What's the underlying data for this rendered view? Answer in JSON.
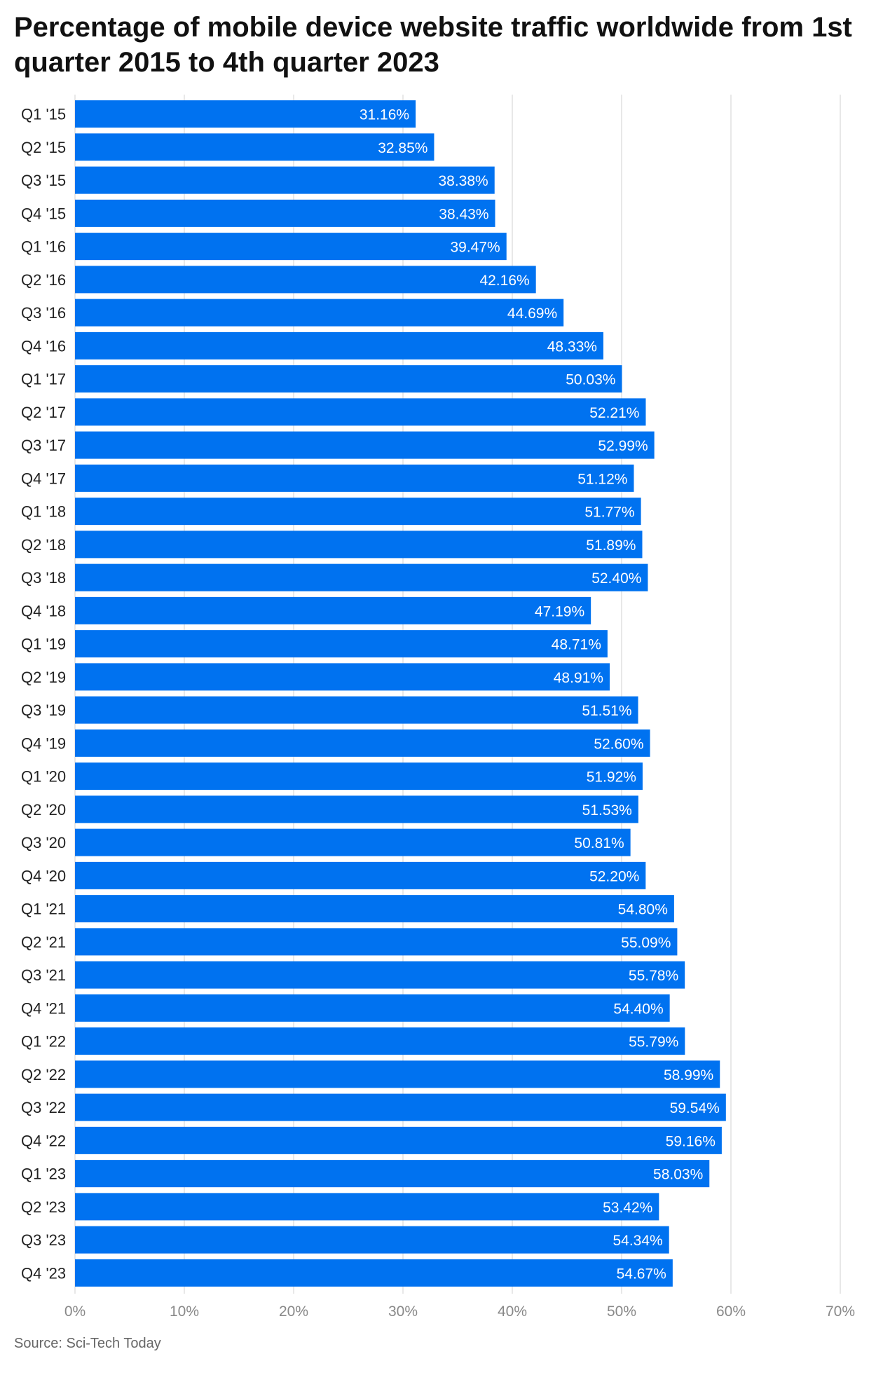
{
  "title": "Percentage of mobile device website traffic worldwide from 1st quarter 2015 to 4th quarter 2023",
  "source": "Source: Sci-Tech Today",
  "colors": {
    "bar": "#0072F0",
    "grid": "#E0E0E0",
    "label": "#222222",
    "tick": "#888888"
  },
  "chart_data": {
    "type": "bar",
    "orientation": "horizontal",
    "categories": [
      "Q1 '15",
      "Q2 '15",
      "Q3 '15",
      "Q4 '15",
      "Q1 '16",
      "Q2 '16",
      "Q3 '16",
      "Q4 '16",
      "Q1 '17",
      "Q2 '17",
      "Q3 '17",
      "Q4 '17",
      "Q1 '18",
      "Q2 '18",
      "Q3 '18",
      "Q4 '18",
      "Q1 '19",
      "Q2 '19",
      "Q3 '19",
      "Q4 '19",
      "Q1 '20",
      "Q2 '20",
      "Q3 '20",
      "Q4 '20",
      "Q1 '21",
      "Q2 '21",
      "Q3 '21",
      "Q4 '21",
      "Q1 '22",
      "Q2 '22",
      "Q3 '22",
      "Q4 '22",
      "Q1 '23",
      "Q2 '23",
      "Q3 '23",
      "Q4 '23"
    ],
    "values": [
      31.16,
      32.85,
      38.38,
      38.43,
      39.47,
      42.16,
      44.69,
      48.33,
      50.03,
      52.21,
      52.99,
      51.12,
      51.77,
      51.89,
      52.4,
      47.19,
      48.71,
      48.91,
      51.51,
      52.6,
      51.92,
      51.53,
      50.81,
      52.2,
      54.8,
      55.09,
      55.78,
      54.4,
      55.79,
      58.99,
      59.54,
      59.16,
      58.03,
      53.42,
      54.34,
      54.67
    ],
    "value_labels": [
      "31.16%",
      "32.85%",
      "38.38%",
      "38.43%",
      "39.47%",
      "42.16%",
      "44.69%",
      "48.33%",
      "50.03%",
      "52.21%",
      "52.99%",
      "51.12%",
      "51.77%",
      "51.89%",
      "52.40%",
      "47.19%",
      "48.71%",
      "48.91%",
      "51.51%",
      "52.60%",
      "51.92%",
      "51.53%",
      "50.81%",
      "52.20%",
      "54.80%",
      "55.09%",
      "55.78%",
      "54.40%",
      "55.79%",
      "58.99%",
      "59.54%",
      "59.16%",
      "58.03%",
      "53.42%",
      "54.34%",
      "54.67%"
    ],
    "x_ticks": [
      0,
      10,
      20,
      30,
      40,
      50,
      60,
      70
    ],
    "x_tick_labels": [
      "0%",
      "10%",
      "20%",
      "30%",
      "40%",
      "50%",
      "60%",
      "70%"
    ],
    "xlim": [
      0,
      70
    ],
    "grid": true,
    "legend": "none"
  }
}
